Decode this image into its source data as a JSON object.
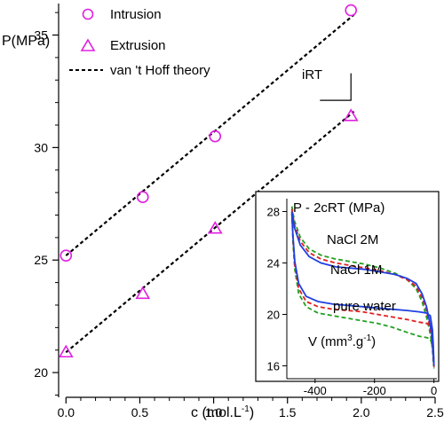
{
  "chart_data": [
    {
      "type": "scatter",
      "title": "",
      "xlabel": "c (mol.L",
      "xlabel_sup": "-1",
      "xlabel_suffix": ")",
      "ylabel": "P(MPa)",
      "xlim": [
        -0.05,
        2.5
      ],
      "ylim": [
        18.9,
        36.4
      ],
      "x_ticks": [
        0.0,
        0.5,
        1.0,
        1.5,
        2.0,
        2.5
      ],
      "x_tick_labels": [
        "0.0",
        "0.5",
        "1.0",
        "1.5",
        "2.0",
        "2.5"
      ],
      "y_ticks": [
        20,
        25,
        30,
        35
      ],
      "y_tick_labels": [
        "20",
        "25",
        "30",
        "35"
      ],
      "legend_position": "top-left",
      "series": [
        {
          "name": "Intrusion",
          "marker": "circle",
          "color": "#e020e0",
          "x": [
            0.0,
            0.52,
            1.01,
            1.93
          ],
          "y": [
            25.2,
            27.8,
            30.5,
            36.1
          ]
        },
        {
          "name": "Extrusion",
          "marker": "triangle",
          "color": "#e020e0",
          "x": [
            0.0,
            0.52,
            1.01,
            1.93
          ],
          "y": [
            20.9,
            23.5,
            26.4,
            31.4
          ]
        },
        {
          "name": "van 't Hoff theory",
          "style": "dashed",
          "color": "#000000",
          "lines": [
            {
              "x": [
                0.0,
                1.95
              ],
              "y": [
                25.2,
                35.9
              ]
            },
            {
              "x": [
                0.0,
                1.95
              ],
              "y": [
                20.9,
                31.6
              ]
            }
          ]
        }
      ],
      "annotations": [
        {
          "text": "iRT",
          "slope_triangle_x": [
            1.72,
            1.93
          ],
          "slope_triangle_y": [
            32.1,
            33.3
          ]
        }
      ]
    },
    {
      "type": "line",
      "title": "P - 2cRT  (MPa)",
      "xlabel": "V (mm",
      "xlabel_sup1": "3",
      "xlabel_mid": ".g",
      "xlabel_sup2": "-1",
      "xlabel_suffix": ")",
      "xlim": [
        -495,
        10
      ],
      "ylim": [
        15,
        29
      ],
      "x_ticks": [
        -400,
        -200,
        0
      ],
      "x_tick_labels": [
        "-400",
        "-200",
        "0"
      ],
      "y_ticks": [
        16,
        20,
        24,
        28
      ],
      "y_tick_labels": [
        "16",
        "20",
        "24",
        "28"
      ],
      "series": [
        {
          "name": "NaCl 2M",
          "color": "#22a022",
          "upper": {
            "x": [
              -478,
              -470,
              -450,
              -420,
              -380,
              -330,
              -280,
              -230,
              -180,
              -130,
              -90,
              -60,
              -40,
              -25,
              -15,
              -8,
              -4,
              -1
            ],
            "y": [
              28.4,
              27.3,
              26.0,
              25.1,
              24.6,
              24.3,
              24.1,
              23.9,
              23.6,
              23.2,
              22.7,
              22.0,
              21.0,
              19.8,
              18.8,
              17.9,
              17.0,
              16.0
            ]
          },
          "lower": {
            "x": [
              -478,
              -474,
              -468,
              -455,
              -430,
              -390,
              -340,
              -290,
              -240,
              -190,
              -140,
              -90,
              -50,
              -25,
              -12,
              -5,
              -2,
              0
            ],
            "y": [
              28.0,
              25.5,
              23.5,
              21.6,
              20.6,
              20.1,
              19.9,
              19.7,
              19.5,
              19.3,
              19.0,
              18.6,
              18.3,
              18.2,
              18.1,
              17.5,
              16.8,
              15.8
            ]
          }
        },
        {
          "name": "NaCl 1M",
          "color": "#e02020",
          "upper": {
            "x": [
              -478,
              -470,
              -450,
              -420,
              -380,
              -330,
              -280,
              -230,
              -180,
              -130,
              -90,
              -60,
              -40,
              -25,
              -15,
              -8,
              -4,
              -1
            ],
            "y": [
              28.2,
              27.0,
              25.7,
              24.8,
              24.3,
              24.0,
              23.8,
              23.6,
              23.4,
              23.1,
              22.7,
              22.2,
              21.3,
              20.3,
              19.2,
              18.3,
              17.3,
              16.2
            ]
          },
          "lower": {
            "x": [
              -478,
              -474,
              -468,
              -455,
              -430,
              -390,
              -340,
              -290,
              -240,
              -190,
              -140,
              -90,
              -50,
              -25,
              -12,
              -5,
              -2,
              0
            ],
            "y": [
              27.9,
              25.8,
              23.8,
              22.0,
              21.0,
              20.6,
              20.4,
              20.3,
              20.2,
              20.0,
              19.8,
              19.6,
              19.4,
              19.3,
              19.1,
              18.3,
              17.2,
              15.9
            ]
          }
        },
        {
          "name": "pure water",
          "color": "#2040e0",
          "upper": {
            "x": [
              -478,
              -470,
              -450,
              -420,
              -380,
              -330,
              -280,
              -230,
              -180,
              -130,
              -90,
              -60,
              -40,
              -25,
              -15,
              -8,
              -4,
              -1
            ],
            "y": [
              28.0,
              26.8,
              25.4,
              24.5,
              24.0,
              23.7,
              23.6,
              23.5,
              23.3,
              23.1,
              22.8,
              22.4,
              21.6,
              20.6,
              19.5,
              18.6,
              17.5,
              16.3
            ]
          },
          "lower": {
            "x": [
              -478,
              -474,
              -468,
              -455,
              -430,
              -390,
              -340,
              -290,
              -240,
              -190,
              -140,
              -90,
              -50,
              -25,
              -12,
              -5,
              -2,
              0
            ],
            "y": [
              27.8,
              26.0,
              24.1,
              22.4,
              21.4,
              21.0,
              20.8,
              20.7,
              20.6,
              20.5,
              20.4,
              20.3,
              20.2,
              20.1,
              19.9,
              18.8,
              17.5,
              16.0
            ]
          }
        }
      ],
      "legend_position": "inline"
    }
  ]
}
